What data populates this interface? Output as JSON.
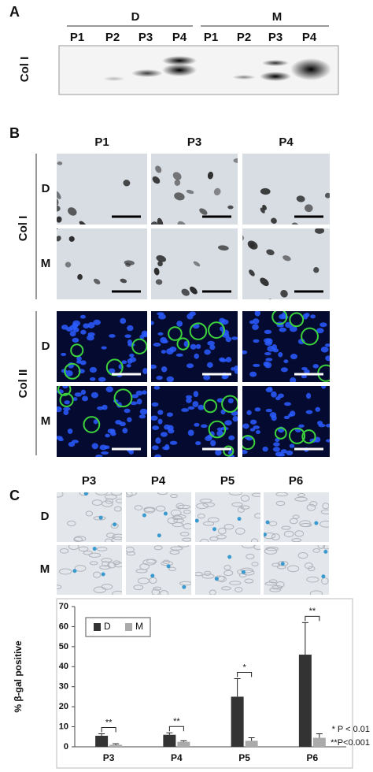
{
  "panel_a": {
    "label": "A",
    "groups": [
      "D",
      "M"
    ],
    "lanes": [
      "P1",
      "P2",
      "P3",
      "P4",
      "P1",
      "P2",
      "P3",
      "P4"
    ],
    "row_label": "Col I"
  },
  "panel_b": {
    "label": "B",
    "columns": [
      "P1",
      "P3",
      "P4"
    ],
    "groups": [
      {
        "label": "Col I",
        "rows": [
          "D",
          "M"
        ]
      },
      {
        "label": "Col II",
        "rows": [
          "D",
          "M"
        ]
      }
    ]
  },
  "panel_c": {
    "label": "C",
    "columns": [
      "P3",
      "P4",
      "P5",
      "P6"
    ],
    "rows": [
      "D",
      "M"
    ]
  },
  "chart_data": {
    "type": "bar",
    "ylabel": "% β-gal positive",
    "categories": [
      "P3",
      "P4",
      "P5",
      "P6"
    ],
    "series": [
      {
        "name": "D",
        "color": "#333333",
        "values": [
          5.5,
          6,
          25,
          46
        ],
        "errors": [
          1,
          1,
          9,
          16
        ]
      },
      {
        "name": "M",
        "color": "#aaaaaa",
        "values": [
          1,
          2.5,
          3,
          4.5
        ],
        "errors": [
          0.5,
          0.5,
          1.5,
          2
        ]
      }
    ],
    "significance": [
      "**",
      "**",
      "*",
      "**"
    ],
    "notes": [
      "* P < 0.01",
      "**P<0.001"
    ],
    "ylim": [
      0,
      70
    ],
    "yticks": [
      0,
      10,
      20,
      30,
      40,
      50,
      60,
      70
    ],
    "legend": "upper-left"
  }
}
